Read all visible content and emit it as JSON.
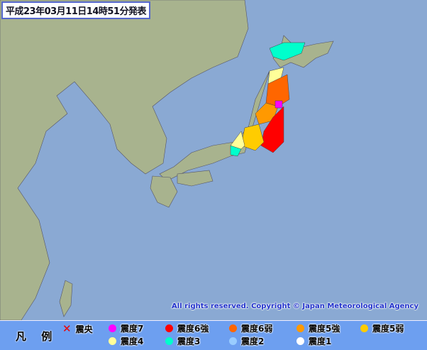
{
  "title": "平成23年03月11日14時51分発表",
  "copyright": "All rights reserved. Copyright © Japan Meteorological Agency",
  "colors": {
    "sea": "#8aa9d3",
    "land": "#a8b38e",
    "legend_bg": "#6d9ff0"
  },
  "legend": {
    "heading": "凡 例",
    "epicenter": {
      "label": "震央",
      "icon": "x-mark-icon",
      "color": "#ee0000"
    },
    "items": [
      {
        "label": "震度7",
        "color": "#ff00ff"
      },
      {
        "label": "震度6強",
        "color": "#ff0000"
      },
      {
        "label": "震度6弱",
        "color": "#ff6600"
      },
      {
        "label": "震度5強",
        "color": "#ff9900"
      },
      {
        "label": "震度5弱",
        "color": "#ffcc00"
      },
      {
        "label": "震度4",
        "color": "#ffff99"
      },
      {
        "label": "震度3",
        "color": "#00ffcc"
      },
      {
        "label": "震度2",
        "color": "#99ccff"
      },
      {
        "label": "震度1",
        "color": "#ffffff"
      }
    ]
  }
}
